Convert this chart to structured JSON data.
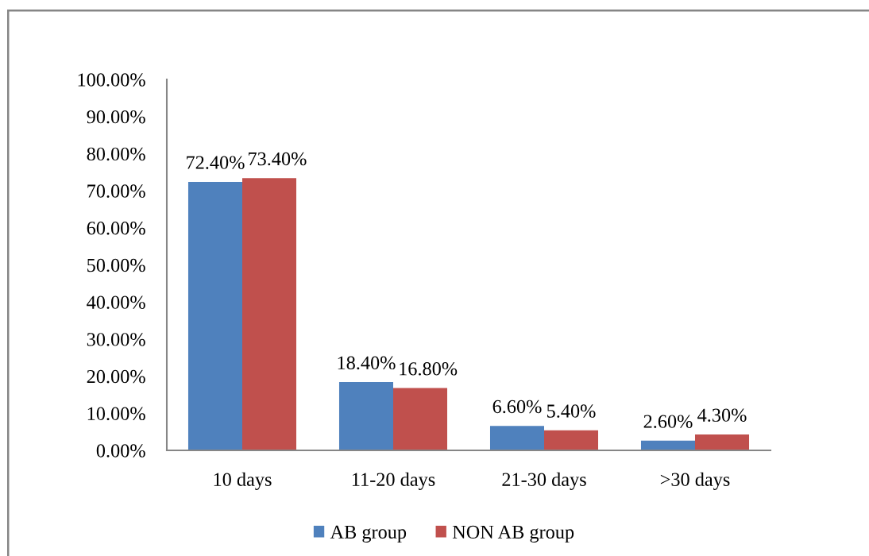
{
  "chart_data": {
    "type": "bar",
    "categories": [
      "10 days",
      "11-20 days",
      "21-30 days",
      ">30 days"
    ],
    "series": [
      {
        "name": "AB group",
        "color": "#4f81bd",
        "values": [
          72.4,
          18.4,
          6.6,
          2.6
        ],
        "value_labels": [
          "72.40%",
          "18.40%",
          "6.60%",
          "2.60%"
        ]
      },
      {
        "name": "NON AB group",
        "color": "#c0504d",
        "values": [
          73.4,
          16.8,
          5.4,
          4.3
        ],
        "value_labels": [
          "73.40%",
          "16.80%",
          "5.40%",
          "4.30%"
        ]
      }
    ],
    "ylim": [
      0,
      100
    ],
    "yticks": [
      {
        "value": 0,
        "label": "0.00%"
      },
      {
        "value": 10,
        "label": "10.00%"
      },
      {
        "value": 20,
        "label": "20.00%"
      },
      {
        "value": 30,
        "label": "30.00%"
      },
      {
        "value": 40,
        "label": "40.00%"
      },
      {
        "value": 50,
        "label": "50.00%"
      },
      {
        "value": 60,
        "label": "60.00%"
      },
      {
        "value": 70,
        "label": "70.00%"
      },
      {
        "value": 80,
        "label": "80.00%"
      },
      {
        "value": 90,
        "label": "90.00%"
      },
      {
        "value": 100,
        "label": "100.00%"
      }
    ],
    "grid": false,
    "legend": "bottom"
  }
}
